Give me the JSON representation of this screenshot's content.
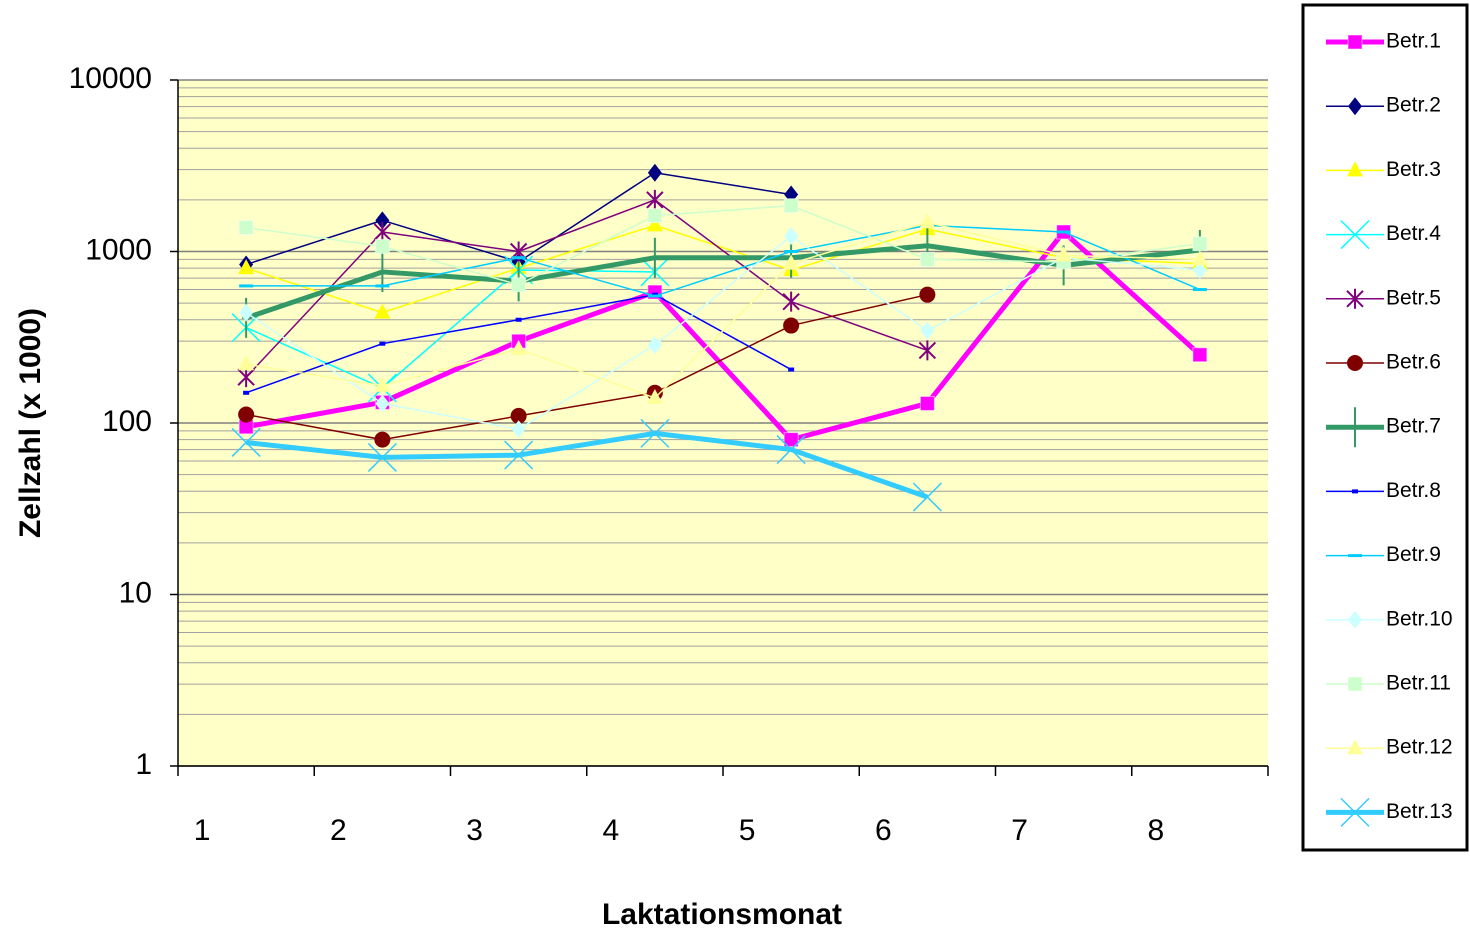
{
  "chart_data": {
    "type": "line",
    "xlabel": "Laktationsmonat",
    "ylabel": "Zellzahl (x 1000)",
    "categories": [
      "1",
      "2",
      "3",
      "4",
      "5",
      "6",
      "7",
      "8"
    ],
    "ylim": [
      1,
      10000
    ],
    "yticks": [
      1,
      10,
      100,
      1000,
      10000
    ],
    "log_y": true,
    "grid": true,
    "minor_grid": true,
    "legend": "right",
    "background": "#ffffc8",
    "series": [
      {
        "name": "Betr.1",
        "color": "#ff00ff",
        "marker": "square",
        "width": 5,
        "values": [
          95,
          132,
          300,
          580,
          80,
          130,
          1300,
          250
        ]
      },
      {
        "name": "Betr.2",
        "color": "#000080",
        "marker": "diamond",
        "width": 1.5,
        "values": [
          840,
          1520,
          870,
          2880,
          2150,
          null,
          null,
          null
        ]
      },
      {
        "name": "Betr.3",
        "color": "#ffff00",
        "marker": "triangle",
        "width": 1.5,
        "values": [
          800,
          440,
          800,
          1420,
          780,
          1350,
          920,
          850
        ]
      },
      {
        "name": "Betr.4",
        "color": "#00ffff",
        "marker": "x",
        "width": 1.5,
        "values": [
          360,
          160,
          780,
          760,
          null,
          null,
          null,
          null
        ]
      },
      {
        "name": "Betr.5",
        "color": "#800080",
        "marker": "star",
        "width": 1.5,
        "values": [
          185,
          1300,
          1000,
          2000,
          510,
          265,
          null,
          null
        ]
      },
      {
        "name": "Betr.6",
        "color": "#800000",
        "marker": "circle",
        "width": 1.5,
        "values": [
          112,
          80,
          110,
          150,
          370,
          560,
          null,
          null
        ]
      },
      {
        "name": "Betr.7",
        "color": "#339966",
        "marker": "plus",
        "width": 5,
        "values": [
          410,
          760,
          670,
          920,
          920,
          1080,
          830,
          1020
        ]
      },
      {
        "name": "Betr.8",
        "color": "#0000ff",
        "marker": "smallsquare",
        "width": 1.5,
        "values": [
          150,
          290,
          400,
          560,
          205,
          null,
          null,
          null
        ]
      },
      {
        "name": "Betr.9",
        "color": "#00ccff",
        "marker": "dash",
        "width": 1.5,
        "values": [
          630,
          630,
          920,
          550,
          1000,
          1420,
          1300,
          600
        ]
      },
      {
        "name": "Betr.10",
        "color": "#ccffff",
        "marker": "diamond",
        "width": 1.5,
        "values": [
          440,
          130,
          92,
          285,
          1230,
          345,
          920,
          780
        ]
      },
      {
        "name": "Betr.11",
        "color": "#ccffcc",
        "marker": "square",
        "width": 1.5,
        "values": [
          1380,
          1070,
          640,
          1620,
          1850,
          900,
          870,
          1110
        ]
      },
      {
        "name": "Betr.12",
        "color": "#ffff99",
        "marker": "triangle",
        "width": 1.5,
        "values": [
          220,
          165,
          270,
          140,
          850,
          1480,
          950,
          900
        ]
      },
      {
        "name": "Betr.13",
        "color": "#33ccff",
        "marker": "x",
        "width": 5,
        "values": [
          77,
          63,
          65,
          87,
          70,
          37,
          null,
          null
        ]
      }
    ]
  }
}
